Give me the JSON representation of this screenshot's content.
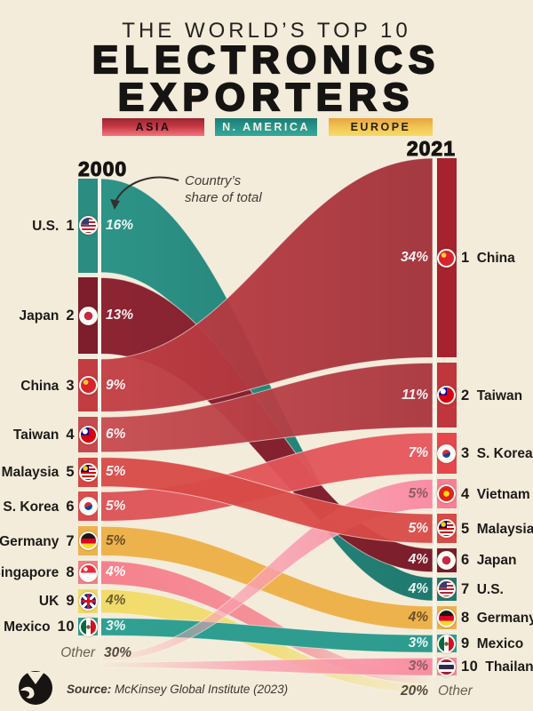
{
  "title": {
    "kicker": "THE WORLD’S TOP 10",
    "line1": "ELECTRONICS",
    "line2": "EXPORTERS"
  },
  "legend": [
    {
      "label": "ASIA",
      "gradient": [
        "#9c2531",
        "#c63b44",
        "#f5747e"
      ],
      "text_color": "#1d0f12"
    },
    {
      "label": "N. AMERICA",
      "gradient": [
        "#1c7d74",
        "#27938a",
        "#35a99b"
      ],
      "text_color": "#f5f1e6"
    },
    {
      "label": "EUROPE",
      "gradient": [
        "#eaa33f",
        "#f0c455",
        "#f6dc66"
      ],
      "text_color": "#2a1f0a"
    }
  ],
  "annotation": {
    "line1": "Country’s",
    "line2": "share of total"
  },
  "source": {
    "prefix": "Source:",
    "text": " McKinsey Global Institute (2023)"
  },
  "colors": {
    "background": "#f4ecda",
    "column_line": "#f8f4ea",
    "white_pct": "rgba(255,255,255,0.92)"
  },
  "chart_data": {
    "type": "sankey",
    "title": "The World's Top 10 Electronics Exporters",
    "unit": "% share of total world electronics exports",
    "left_year": "2000",
    "right_year": "2021",
    "left": [
      {
        "rank": 1,
        "country": "U.S.",
        "region": "N. America",
        "value_pct": 16,
        "flag": "us",
        "bar_color": "#2b8c81",
        "pct_color": "rgba(255,255,255,0.92)"
      },
      {
        "rank": 2,
        "country": "Japan",
        "region": "Asia",
        "value_pct": 13,
        "flag": "jp",
        "bar_color": "#7e1d2b",
        "pct_color": "rgba(255,255,255,0.92)"
      },
      {
        "rank": 3,
        "country": "China",
        "region": "Asia",
        "value_pct": 9,
        "flag": "cn",
        "bar_color": "#c13d42",
        "pct_color": "rgba(255,255,255,0.92)"
      },
      {
        "rank": 4,
        "country": "Taiwan",
        "region": "Asia",
        "value_pct": 6,
        "flag": "tw",
        "bar_color": "#c64a4e",
        "pct_color": "rgba(255,255,255,0.92)"
      },
      {
        "rank": 5,
        "country": "Malaysia",
        "region": "Asia",
        "value_pct": 5,
        "flag": "my",
        "bar_color": "#d54744",
        "pct_color": "rgba(255,255,255,0.92)"
      },
      {
        "rank": 6,
        "country": "S. Korea",
        "region": "Asia",
        "value_pct": 5,
        "flag": "kr",
        "bar_color": "#da4c4f",
        "pct_color": "rgba(255,255,255,0.92)"
      },
      {
        "rank": 7,
        "country": "Germany",
        "region": "Europe",
        "value_pct": 5,
        "flag": "de",
        "bar_color": "#edb14d",
        "pct_color": "#6b5128"
      },
      {
        "rank": 8,
        "country": "Singapore",
        "region": "Asia",
        "value_pct": 4,
        "flag": "sg",
        "bar_color": "#f47e8a",
        "pct_color": "rgba(255,255,255,0.95)"
      },
      {
        "rank": 9,
        "country": "UK",
        "region": "Europe",
        "value_pct": 4,
        "flag": "gb",
        "bar_color": "#f0da66",
        "pct_color": "#6b5e2f"
      },
      {
        "rank": 10,
        "country": "Mexico",
        "region": "N. America",
        "value_pct": 3,
        "flag": "mx",
        "bar_color": "#2e9f92",
        "pct_color": "rgba(255,255,255,0.9)"
      }
    ],
    "left_other": {
      "label": "Other",
      "value_pct": 30
    },
    "right": [
      {
        "rank": 1,
        "country": "China",
        "region": "Asia",
        "value_pct": 34,
        "flag": "cn",
        "bar_color": "#a5222e",
        "pct_color": "rgba(255,255,255,0.92)"
      },
      {
        "rank": 2,
        "country": "Taiwan",
        "region": "Asia",
        "value_pct": 11,
        "flag": "tw",
        "bar_color": "#bf363d",
        "pct_color": "rgba(255,255,255,0.92)"
      },
      {
        "rank": 3,
        "country": "S. Korea",
        "region": "Asia",
        "value_pct": 7,
        "flag": "kr",
        "bar_color": "#e4484c",
        "pct_color": "rgba(255,255,255,0.92)"
      },
      {
        "rank": 4,
        "country": "Vietnam",
        "region": "Asia",
        "value_pct": 5,
        "flag": "vn",
        "bar_color": "#f97f94",
        "pct_color": "#8f5a64"
      },
      {
        "rank": 5,
        "country": "Malaysia",
        "region": "Asia",
        "value_pct": 5,
        "flag": "my",
        "bar_color": "#d84a45",
        "pct_color": "rgba(255,255,255,0.92)"
      },
      {
        "rank": 6,
        "country": "Japan",
        "region": "Asia",
        "value_pct": 4,
        "flag": "jp",
        "bar_color": "#7a1d29",
        "pct_color": "rgba(255,255,255,0.92)"
      },
      {
        "rank": 7,
        "country": "U.S.",
        "region": "N. America",
        "value_pct": 4,
        "flag": "us",
        "bar_color": "#26786d",
        "pct_color": "rgba(255,255,255,0.92)"
      },
      {
        "rank": 8,
        "country": "Germany",
        "region": "Europe",
        "value_pct": 4,
        "flag": "de",
        "bar_color": "#edb14d",
        "pct_color": "#6b5128"
      },
      {
        "rank": 9,
        "country": "Mexico",
        "region": "N. America",
        "value_pct": 3,
        "flag": "mx",
        "bar_color": "#2e9f92",
        "pct_color": "rgba(255,255,255,0.9)"
      },
      {
        "rank": 10,
        "country": "Thailand",
        "region": "Asia",
        "value_pct": 3,
        "flag": "th",
        "bar_color": "#f9899e",
        "pct_color": "#8f5a64"
      }
    ],
    "right_other": {
      "label": "Other",
      "value_pct": 20
    },
    "links": [
      {
        "name": "us-2000-to-us-2021",
        "l": 0,
        "r": 6,
        "c1": "#2e9488",
        "c2": "#1f786e",
        "fade": null,
        "opacity": 1
      },
      {
        "name": "japan-2000-to-japan-2021",
        "l": 1,
        "r": 5,
        "c1": "#8d2533",
        "c2": "#7b1e2b",
        "fade": null,
        "opacity": 1
      },
      {
        "name": "singapore-2000-to-other",
        "l": 7,
        "r": null,
        "c1": "#f5818d",
        "c2": "#f5818d",
        "fade": "out",
        "vt": 758,
        "vb": 770,
        "opacity": 1
      },
      {
        "name": "uk-2000-to-other",
        "l": 8,
        "r": null,
        "c1": "#f1db69",
        "c2": "#f0db6b",
        "fade": "out",
        "vt": 770,
        "vb": 780,
        "opacity": 1
      },
      {
        "name": "germany-2000-to-germany-2021",
        "l": 6,
        "r": 7,
        "c1": "#eeb24d",
        "c2": "#eeb24c",
        "fade": null,
        "opacity": 1
      },
      {
        "name": "mexico-2000-to-mexico-2021",
        "l": 9,
        "r": 8,
        "c1": "#30a093",
        "c2": "#2d9b8e",
        "fade": null,
        "opacity": 1
      },
      {
        "name": "other-to-thailand-2021",
        "l": null,
        "r": 9,
        "c1": "#f9a0b0",
        "c2": "#f88da1",
        "fade": "in",
        "vt": 745,
        "vb": 751,
        "opacity": 1
      },
      {
        "name": "other-to-vietnam-2021",
        "l": null,
        "r": 3,
        "c1": "#f9a0b0",
        "c2": "#f98ca4",
        "fade": "in",
        "vt": 737,
        "vb": 744,
        "opacity": 1
      },
      {
        "name": "skorea-2000-to-skorea-2021",
        "l": 5,
        "r": 2,
        "c1": "#dc5154",
        "c2": "#e6575c",
        "fade": null,
        "opacity": 0.95
      },
      {
        "name": "malaysia-2000-to-malaysia-2021",
        "l": 4,
        "r": 4,
        "c1": "#d74a47",
        "c2": "#d94b46",
        "fade": null,
        "opacity": 0.95
      },
      {
        "name": "taiwan-2000-to-taiwan-2021",
        "l": 3,
        "r": 1,
        "c1": "#c74b4f",
        "c2": "#a9343d",
        "fade": null,
        "opacity": 0.95
      },
      {
        "name": "china-2000-to-china-2021",
        "l": 2,
        "r": 0,
        "c1": "#c23e44",
        "c2": "#a03039",
        "fade": null,
        "opacity": 0.95
      }
    ]
  }
}
